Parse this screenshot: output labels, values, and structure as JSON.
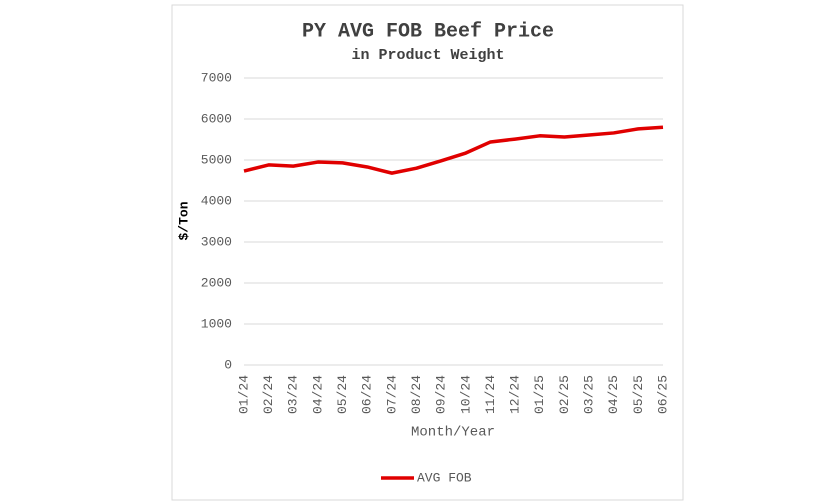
{
  "chart_data": {
    "type": "line",
    "title": "PY AVG FOB Beef Price",
    "subtitle": "in Product Weight",
    "y_label": "$/Ton",
    "x_label": "Month/Year",
    "categories": [
      "01/24",
      "02/24",
      "03/24",
      "04/24",
      "05/24",
      "06/24",
      "07/24",
      "08/24",
      "09/24",
      "10/24",
      "11/24",
      "12/24",
      "01/25",
      "02/25",
      "03/25",
      "04/25",
      "05/25",
      "06/25"
    ],
    "series": [
      {
        "name": "AVG FOB",
        "color": "#e00000",
        "values": [
          4730,
          4880,
          4850,
          4950,
          4930,
          4830,
          4680,
          4800,
          4980,
          5170,
          5440,
          5510,
          5590,
          5560,
          5610,
          5660,
          5760,
          5800
        ]
      }
    ],
    "ylim": [
      0,
      7000
    ],
    "yticks": [
      0,
      1000,
      2000,
      3000,
      4000,
      5000,
      6000,
      7000
    ],
    "grid": true,
    "legend": "bottom"
  }
}
